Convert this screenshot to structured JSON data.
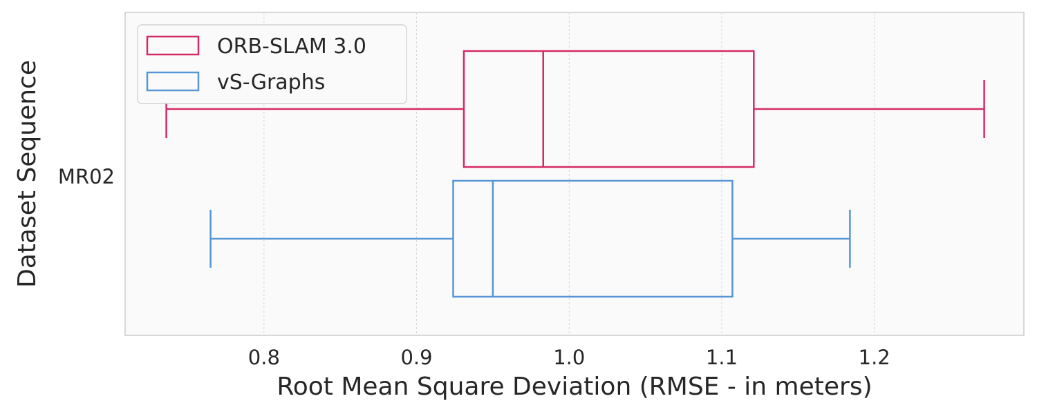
{
  "chart_data": {
    "type": "box",
    "orientation": "horizontal",
    "xlabel": "Root Mean Square Deviation (RMSE - in meters)",
    "ylabel": "Dataset Sequence",
    "categories": [
      "MR02"
    ],
    "xlim": [
      0.709,
      1.298
    ],
    "xticks": [
      0.8,
      0.9,
      1.0,
      1.1,
      1.2
    ],
    "xtick_labels": [
      "0.8",
      "0.9",
      "1.0",
      "1.1",
      "1.2"
    ],
    "grid": "x-dashed",
    "legend": "top-left",
    "series": [
      {
        "name": "ORB-SLAM 3.0",
        "color": "#d42a62",
        "min": 0.736,
        "q1": 0.931,
        "median": 0.983,
        "q3": 1.121,
        "max": 1.272
      },
      {
        "name": "vS-Graphs",
        "color": "#5695d6",
        "min": 0.765,
        "q1": 0.924,
        "median": 0.95,
        "q3": 1.107,
        "max": 1.184
      }
    ]
  }
}
